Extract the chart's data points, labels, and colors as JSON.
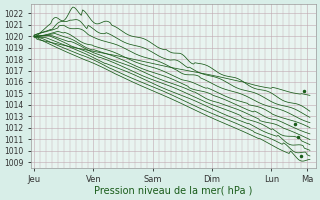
{
  "xlabel": "Pression niveau de la mer( hPa )",
  "background_color": "#d8eee8",
  "plot_bg": "#e8f4f0",
  "grid_color": "#c0a8b0",
  "line_color": "#1a5c1a",
  "ylim": [
    1008.5,
    1022.8
  ],
  "yticks": [
    1009,
    1010,
    1011,
    1012,
    1013,
    1014,
    1015,
    1016,
    1017,
    1018,
    1019,
    1020,
    1021,
    1022
  ],
  "day_labels": [
    "Jeu",
    "Ven",
    "Sam",
    "Dim",
    "Lun",
    "Ma"
  ],
  "day_positions": [
    0.0,
    1.0,
    2.0,
    3.0,
    4.0,
    4.6
  ],
  "xlim": [
    -0.05,
    4.75
  ],
  "n_steps": 200,
  "xlabel_color": "#1a5c1a",
  "xlabel_fontsize": 7.0,
  "tick_fontsize": 5.5,
  "xtick_fontsize": 6.0
}
